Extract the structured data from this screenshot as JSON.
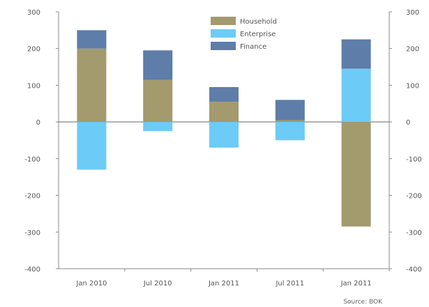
{
  "chart_data": {
    "type": "bar",
    "stacked": true,
    "categories": [
      "Jan 2010",
      "Jul 2010",
      "Jan 2011",
      "Jul 2011",
      "Jan 2011"
    ],
    "series": [
      {
        "name": "Household",
        "color": "#a39a6e",
        "values": [
          200,
          115,
          55,
          5,
          -285
        ]
      },
      {
        "name": "Enterprise",
        "color": "#6dcbf7",
        "values": [
          -130,
          -25,
          -70,
          -50,
          145
        ]
      },
      {
        "name": "Finance",
        "color": "#5e7da8",
        "values": [
          50,
          80,
          40,
          55,
          80
        ]
      }
    ],
    "ylim": [
      -400,
      300
    ],
    "yticks": [
      300,
      200,
      100,
      0,
      -100,
      -200,
      -300,
      -400
    ],
    "ytick_labels": [
      "300",
      "200",
      "100",
      "0",
      "-100",
      "-200",
      "-300",
      "-400"
    ],
    "legend_position": "top-center",
    "footnote": "Source: BOK"
  }
}
